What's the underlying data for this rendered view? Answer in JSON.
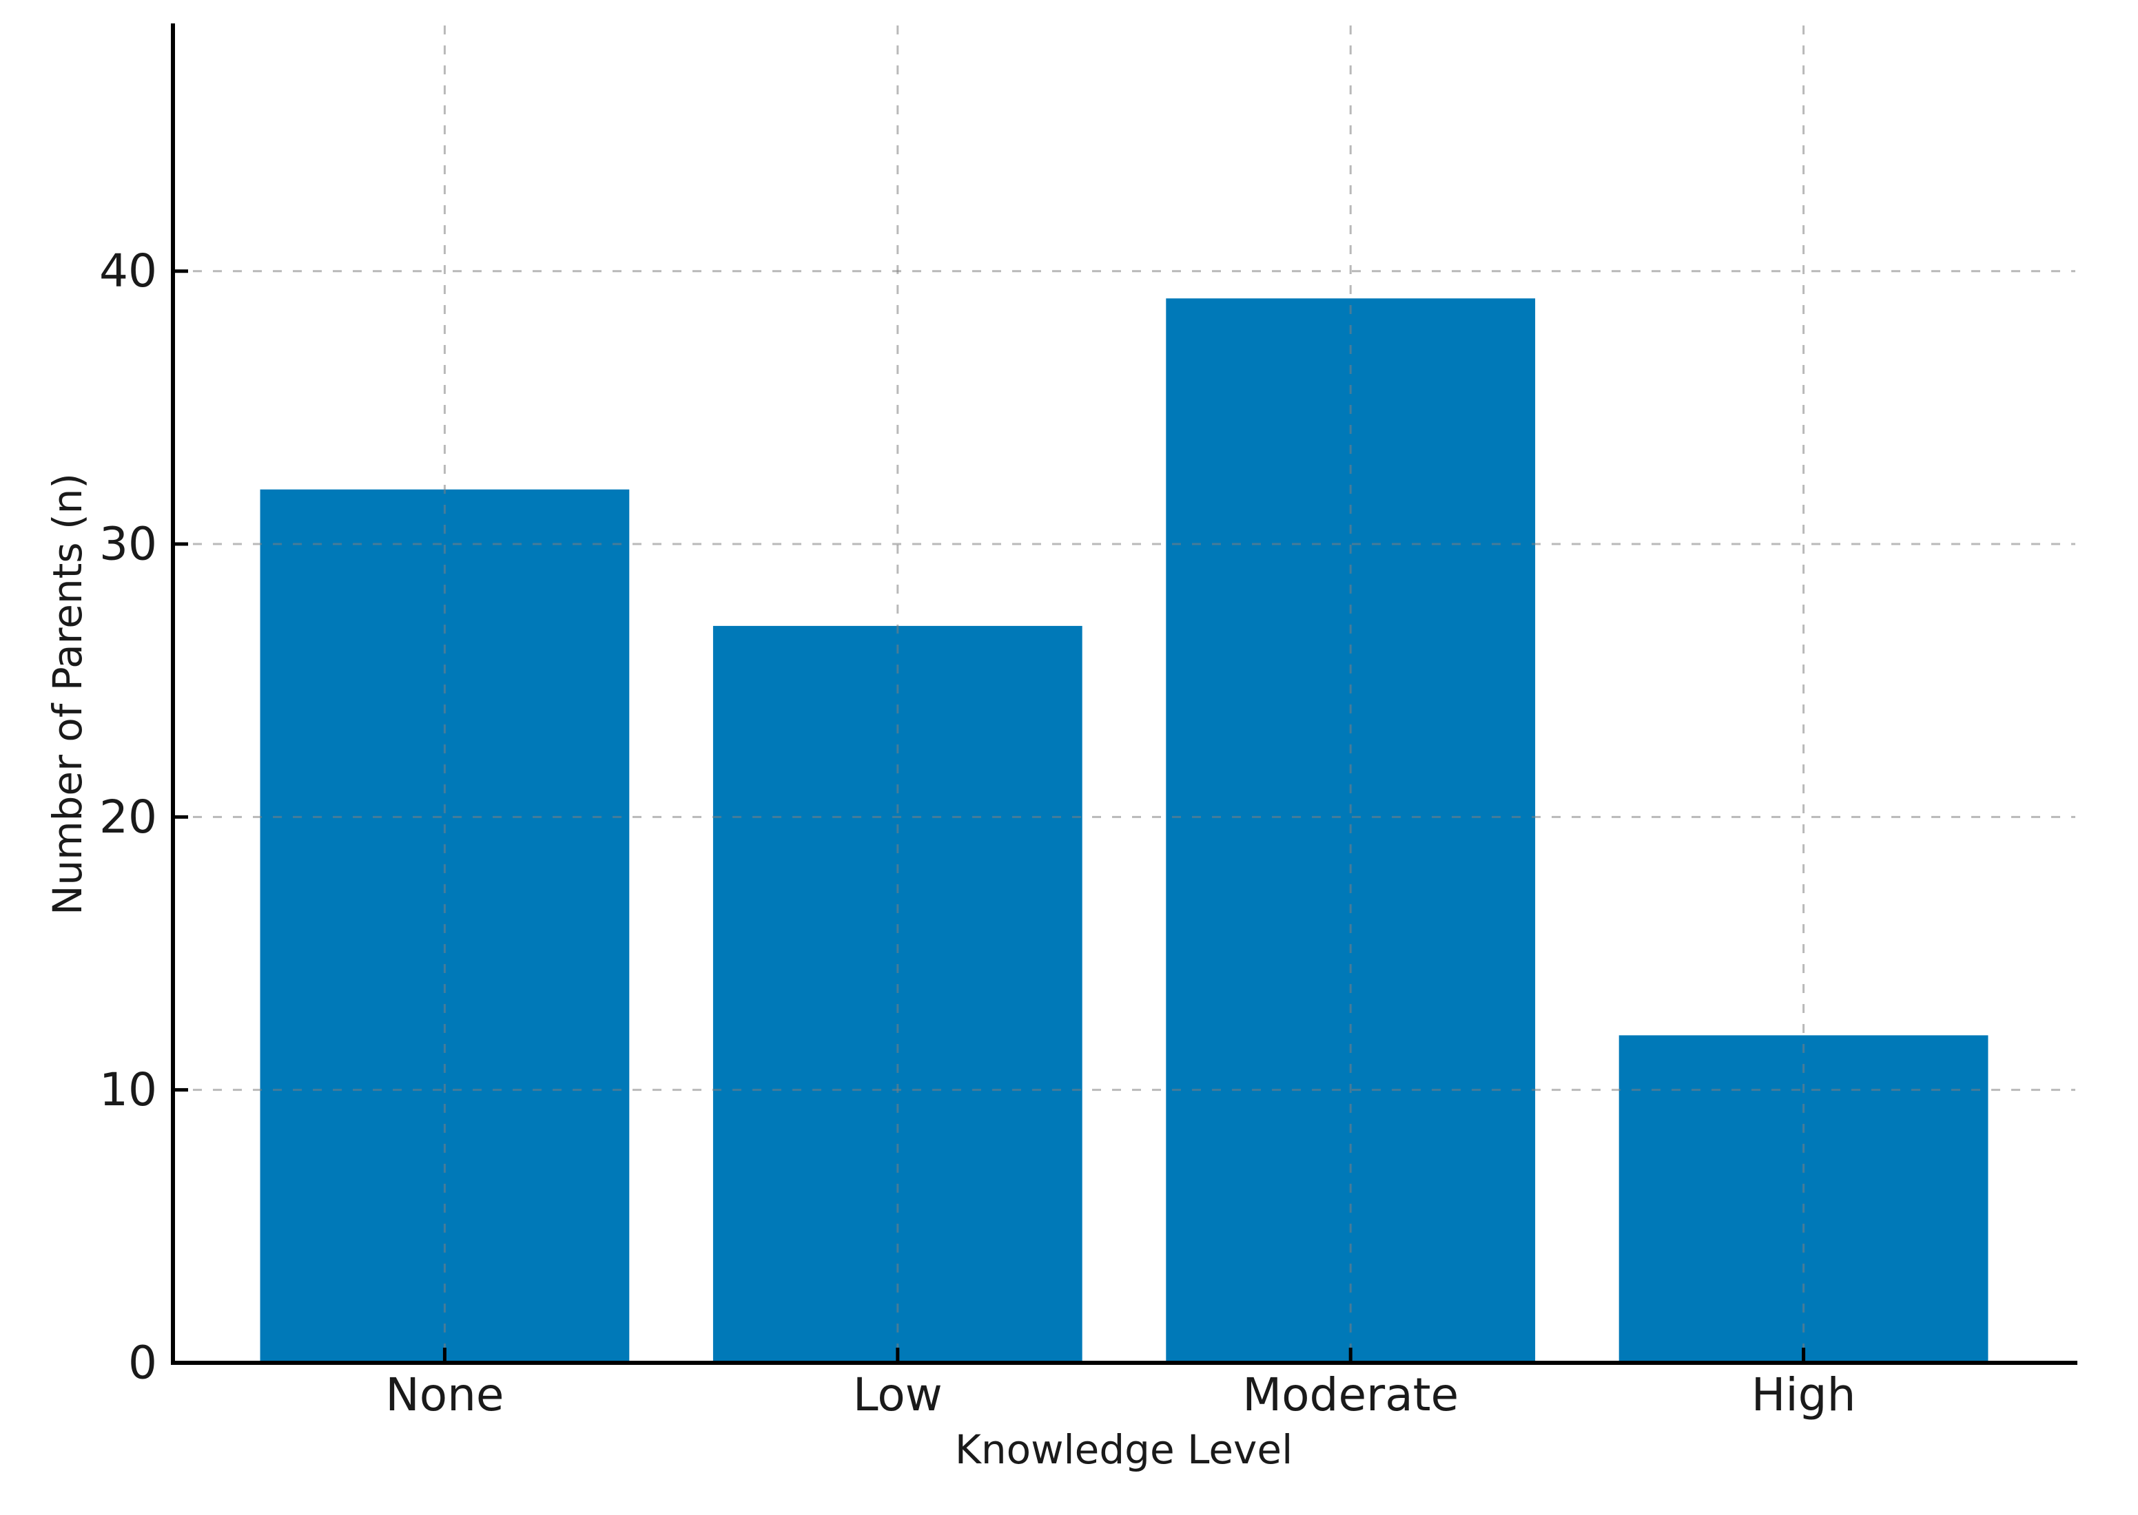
{
  "chart_data": {
    "type": "bar",
    "title": "",
    "categories": [
      "None",
      "Low",
      "Moderate",
      "High"
    ],
    "values": [
      32,
      27,
      39,
      12
    ],
    "xlabel": "Knowledge Level",
    "ylabel": "Number of Parents (n)",
    "yticks": [
      0,
      10,
      20,
      30,
      40
    ],
    "ylim": [
      0,
      49
    ],
    "grid": "dashed gridlines horizontal at yticks and vertical at category centers, drawn above bars",
    "legend": "none",
    "bar_color": "#0079b8",
    "gridline_color": "rgba(128,128,128,0.55)",
    "axis_color": "#000000",
    "text_color": "#1a1a1a"
  }
}
